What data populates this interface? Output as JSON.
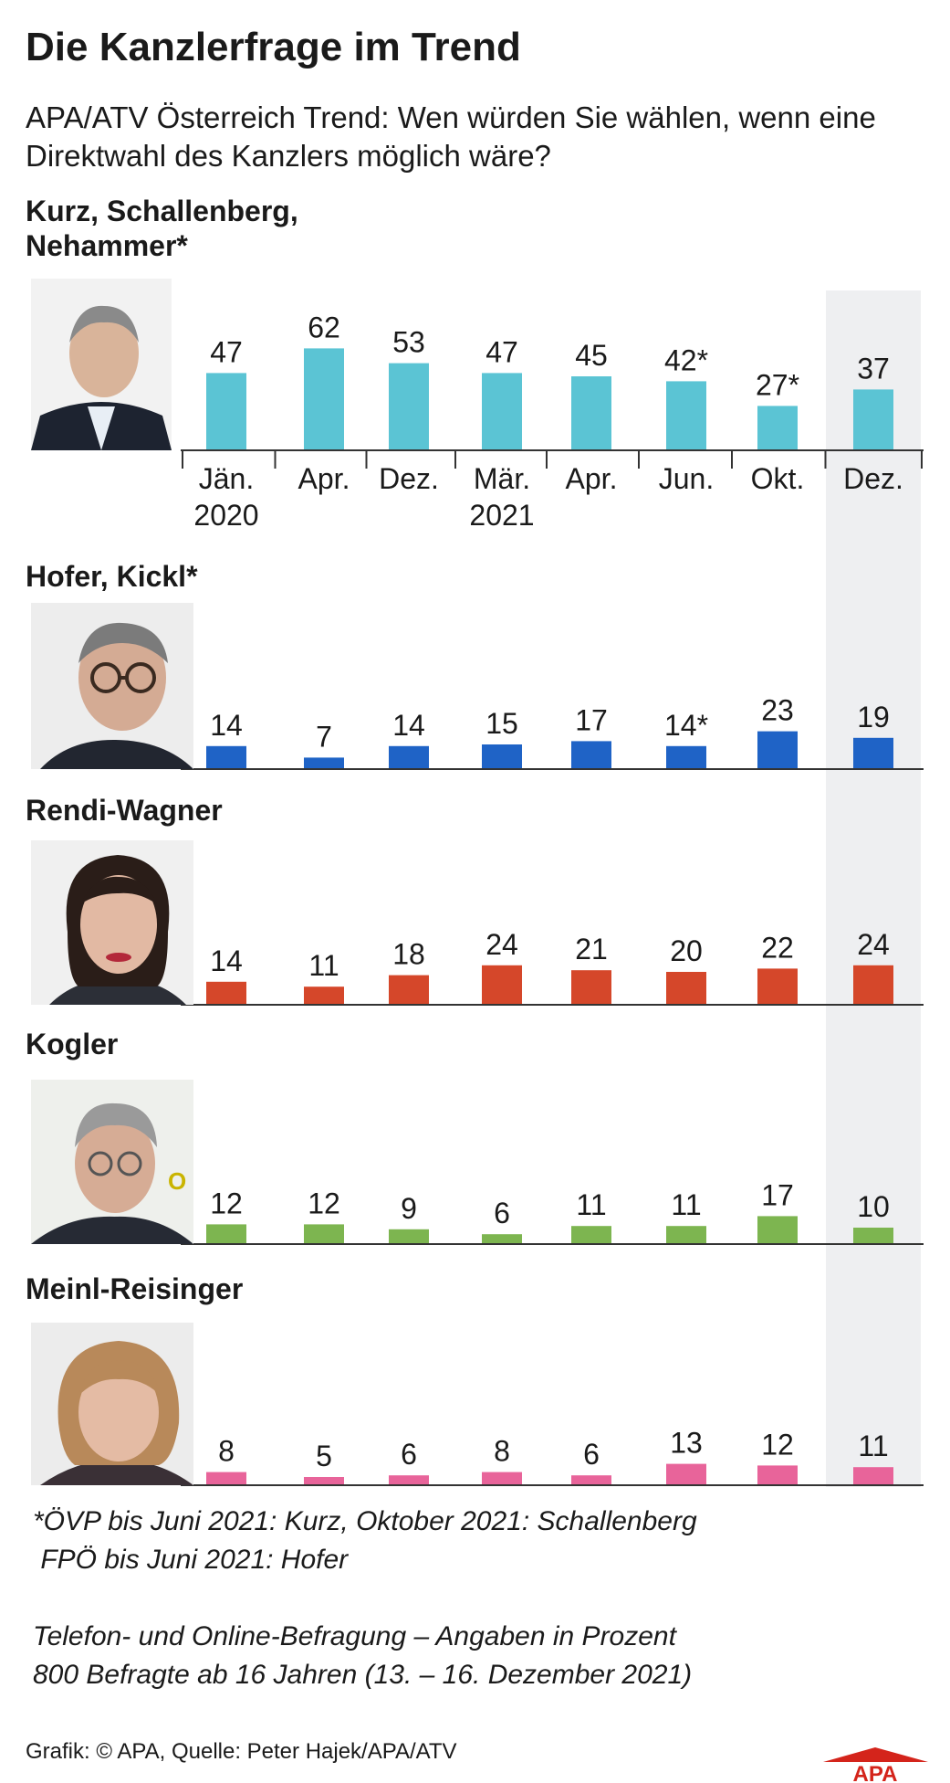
{
  "title": "Die Kanzlerfrage im Trend",
  "subtitle": "APA/ATV Österreich Trend: Wen würden Sie wählen, wenn eine Direktwahl des Kanzlers möglich wäre?",
  "panels": [
    {
      "title_lines": [
        "Kurz, Schallenberg,",
        "Nehammer*"
      ]
    },
    {
      "title_lines": [
        "Hofer, Kickl*"
      ]
    },
    {
      "title_lines": [
        "Rendi-Wagner"
      ]
    },
    {
      "title_lines": [
        "Kogler"
      ]
    },
    {
      "title_lines": [
        "Meinl-Reisinger"
      ]
    }
  ],
  "chart_data": {
    "type": "bar",
    "categories": [
      "Jän. 2020",
      "Apr.",
      "Dez.",
      "Mär. 2021",
      "Apr.",
      "Jun.",
      "Okt.",
      "Dez."
    ],
    "tick_labels": [
      [
        "Jän.",
        "2020"
      ],
      [
        "Apr."
      ],
      [
        "Dez."
      ],
      [
        "Mär.",
        "2021"
      ],
      [
        "Apr."
      ],
      [
        "Jun."
      ],
      [
        "Okt."
      ],
      [
        "Dez."
      ]
    ],
    "highlight_index": 7,
    "highlight_color": "#eeeff1",
    "series": [
      {
        "name": "Kurz, Schallenberg, Nehammer*",
        "color": "#5bc4d4",
        "values": [
          47,
          62,
          53,
          47,
          45,
          42,
          27,
          37
        ],
        "labels": [
          "47",
          "62",
          "53",
          "47",
          "45",
          "42*",
          "27*",
          "37"
        ]
      },
      {
        "name": "Hofer, Kickl*",
        "color": "#1f63c6",
        "values": [
          14,
          7,
          14,
          15,
          17,
          14,
          23,
          19
        ],
        "labels": [
          "14",
          "7",
          "14",
          "15",
          "17",
          "14*",
          "23",
          "19"
        ]
      },
      {
        "name": "Rendi-Wagner",
        "color": "#d5472a",
        "values": [
          14,
          11,
          18,
          24,
          21,
          20,
          22,
          24
        ],
        "labels": [
          "14",
          "11",
          "18",
          "24",
          "21",
          "20",
          "22",
          "24"
        ]
      },
      {
        "name": "Kogler",
        "color": "#7db550",
        "values": [
          12,
          12,
          9,
          6,
          11,
          11,
          17,
          10
        ],
        "labels": [
          "12",
          "12",
          "9",
          "6",
          "11",
          "11",
          "17",
          "10"
        ]
      },
      {
        "name": "Meinl-Reisinger",
        "color": "#e8649a",
        "values": [
          8,
          5,
          6,
          8,
          6,
          13,
          12,
          11
        ],
        "labels": [
          "8",
          "5",
          "6",
          "8",
          "6",
          "13",
          "12",
          "11"
        ]
      }
    ]
  },
  "footnote_lines": [
    "*ÖVP bis Juni 2021: Kurz, Oktober 2021: Schallenberg",
    " FPÖ bis Juni 2021: Hofer",
    "",
    "Telefon- und Online-Befragung – Angaben in Prozent",
    "800 Befragte ab 16 Jahren (13. – 16. Dezember 2021)"
  ],
  "source": "Grafik: © APA, Quelle: Peter Hajek/APA/ATV",
  "logo_text": "APA"
}
